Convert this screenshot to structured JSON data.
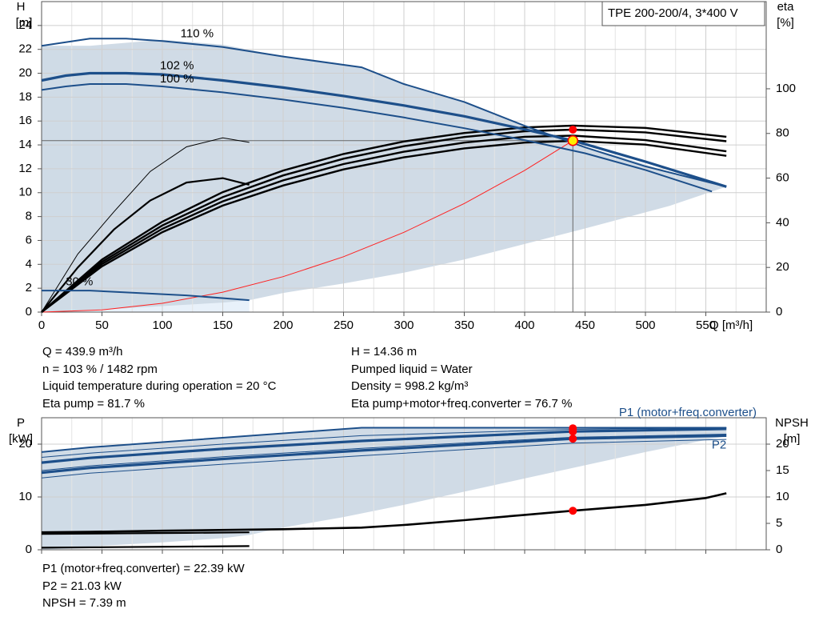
{
  "chart_data": [
    {
      "type": "line",
      "title": "TPE 200-200/4, 3*400 V",
      "xlabel": "Q [m³/h]",
      "ylabel_left": "H",
      "ylabel_left_unit": "[m]",
      "ylabel_right": "eta",
      "ylabel_right_unit": "[%]",
      "xlim": [
        0,
        600
      ],
      "xticks": [
        0,
        50,
        100,
        150,
        200,
        250,
        300,
        350,
        400,
        450,
        500,
        550
      ],
      "ylim_left": [
        0,
        26
      ],
      "yticks_left": [
        0,
        2,
        4,
        6,
        8,
        10,
        12,
        14,
        16,
        18,
        20,
        22,
        24
      ],
      "ylim_right": [
        0,
        100
      ],
      "yticks_right": [
        0,
        20,
        40,
        60,
        80,
        100
      ],
      "grid": true,
      "operating_point": {
        "x": 439.9,
        "y": 14.36
      },
      "speed_labels": [
        {
          "text": "110 %",
          "x": 115,
          "y": 23.3
        },
        {
          "text": "102 %",
          "x": 98,
          "y": 20.6
        },
        {
          "text": "100 %",
          "x": 98,
          "y": 19.5
        },
        {
          "text": "30 %",
          "x": 20,
          "y": 2.5
        }
      ],
      "envelope": {
        "x": [
          0,
          40,
          100,
          150,
          200,
          265,
          300,
          350,
          400,
          440,
          480,
          520,
          567,
          567,
          520,
          450,
          400,
          350,
          300,
          250,
          200,
          172,
          172,
          150,
          100,
          50,
          0
        ],
        "y": [
          22.3,
          22.3,
          22.8,
          22.4,
          21.4,
          20.5,
          19.1,
          17.6,
          15.6,
          14.1,
          13.0,
          11.7,
          10.5,
          10.5,
          8.9,
          7.0,
          5.7,
          4.4,
          3.3,
          2.4,
          1.6,
          1.0,
          1.0,
          0.8,
          0.5,
          0.2,
          0
        ]
      },
      "head_curves": [
        {
          "name": "110 %",
          "x": [
            0,
            20,
            40,
            70,
            100,
            150,
            200,
            265,
            300,
            350,
            400,
            450,
            500,
            567
          ],
          "y": [
            22.3,
            22.6,
            22.9,
            22.9,
            22.7,
            22.2,
            21.4,
            20.5,
            19.1,
            17.6,
            15.6,
            13.8,
            12.2,
            10.5
          ]
        },
        {
          "name": "102 %",
          "x": [
            0,
            20,
            40,
            70,
            100,
            150,
            200,
            250,
            300,
            350,
            400,
            440,
            500,
            567
          ],
          "y": [
            19.4,
            19.8,
            20.0,
            20.0,
            19.9,
            19.4,
            18.8,
            18.1,
            17.3,
            16.4,
            15.3,
            14.36,
            12.6,
            10.5
          ]
        },
        {
          "name": "100 %",
          "x": [
            0,
            20,
            40,
            70,
            100,
            150,
            200,
            250,
            300,
            350,
            400,
            450,
            500,
            555
          ],
          "y": [
            18.6,
            18.9,
            19.1,
            19.1,
            18.9,
            18.4,
            17.8,
            17.1,
            16.3,
            15.4,
            14.4,
            13.3,
            11.9,
            10.1
          ]
        },
        {
          "name": "30 %",
          "x": [
            0,
            40,
            80,
            120,
            172
          ],
          "y": [
            1.8,
            1.8,
            1.6,
            1.4,
            1.0
          ]
        }
      ],
      "system_curve": {
        "x": [
          0,
          50,
          100,
          150,
          200,
          250,
          300,
          350,
          400,
          439.9
        ],
        "y": [
          0,
          0.19,
          0.74,
          1.67,
          2.97,
          4.64,
          6.68,
          9.09,
          11.87,
          14.36
        ]
      },
      "efficiency_curves": [
        {
          "x": [
            0,
            50,
            100,
            150,
            200,
            250,
            300,
            350,
            400,
            440,
            500,
            567
          ],
          "y": [
            0,
            20.5,
            35.8,
            47.7,
            56.7,
            63.9,
            69.3,
            73.3,
            75.9,
            76.7,
            75.0,
            70.0
          ]
        },
        {
          "x": [
            0,
            50,
            100,
            150,
            200,
            250,
            300,
            350,
            400,
            440,
            500,
            567
          ],
          "y": [
            0,
            21.5,
            37.3,
            49.6,
            59.0,
            66.3,
            71.8,
            75.9,
            78.5,
            79.0,
            77.0,
            72.0
          ]
        },
        {
          "x": [
            0,
            50,
            100,
            150,
            200,
            250,
            300,
            350,
            400,
            440,
            500,
            567
          ],
          "y": [
            0,
            22.5,
            38.8,
            51.5,
            61.2,
            68.7,
            74.3,
            78.4,
            81.0,
            81.7,
            80.5,
            76.5
          ]
        },
        {
          "x": [
            0,
            50,
            100,
            150,
            200,
            250,
            300,
            350,
            400,
            440,
            500,
            567
          ],
          "y": [
            0,
            23.5,
            40.5,
            53.7,
            63.4,
            70.8,
            76.4,
            80.2,
            82.7,
            83.5,
            82.5,
            78.5
          ]
        },
        {
          "x": [
            0,
            30,
            60,
            90,
            120,
            150,
            172
          ],
          "y": [
            0,
            20,
            37,
            50,
            58,
            60,
            57
          ]
        },
        {
          "x": [
            0,
            30,
            60,
            90,
            120,
            150,
            172
          ],
          "y": [
            0,
            26,
            45,
            63,
            74,
            78,
            76
          ]
        }
      ],
      "efficiency_points": [
        {
          "x": 439.9,
          "y": 81.7
        },
        {
          "x": 439.9,
          "y": 76.7
        }
      ]
    },
    {
      "type": "line",
      "xlabel": "",
      "ylabel_left": "P",
      "ylabel_left_unit": "[kW]",
      "ylabel_right": "NPSH",
      "ylabel_right_unit": "[m]",
      "xlim": [
        0,
        600
      ],
      "ylim_left": [
        0,
        25
      ],
      "yticks_left": [
        0,
        10,
        20
      ],
      "ylim_right": [
        0,
        25
      ],
      "yticks_right": [
        0,
        5,
        10,
        15,
        20
      ],
      "grid": true,
      "series_labels": [
        {
          "text": "P1 (motor+freq.converter)",
          "x": 600,
          "y": 25.9,
          "color": "#1d4f8a"
        },
        {
          "text": "P2",
          "x": 575,
          "y": 19.8,
          "color": "#1d4f8a"
        }
      ],
      "envelope": {
        "x": [
          0,
          40,
          265,
          440,
          567,
          567,
          550,
          500,
          450,
          400,
          350,
          300,
          250,
          200,
          172,
          150,
          100,
          60,
          30,
          0
        ],
        "y": [
          18.5,
          19.4,
          23.1,
          23.1,
          23.1,
          21.5,
          20.8,
          18.5,
          16.0,
          13.5,
          11.0,
          8.5,
          6.2,
          4.2,
          2.8,
          2.2,
          1.4,
          0.9,
          0.5,
          0
        ]
      },
      "power_curves": [
        {
          "x": [
            0,
            40,
            265,
            440,
            567
          ],
          "y": [
            18.5,
            19.4,
            23.1,
            23.1,
            23.1
          ]
        },
        {
          "x": [
            0,
            40,
            150,
            265,
            440,
            567
          ],
          "y": [
            17.5,
            18.3,
            20.0,
            21.6,
            22.8,
            23.1
          ]
        },
        {
          "x": [
            0,
            40,
            150,
            265,
            440,
            567
          ],
          "y": [
            16.5,
            17.4,
            19.1,
            20.6,
            22.39,
            22.9
          ]
        },
        {
          "x": [
            0,
            40,
            150,
            265,
            440,
            567
          ],
          "y": [
            15.0,
            15.9,
            17.6,
            19.2,
            21.3,
            21.9
          ]
        },
        {
          "x": [
            0,
            40,
            150,
            265,
            440,
            567
          ],
          "y": [
            14.6,
            15.5,
            17.2,
            18.8,
            21.03,
            21.6
          ]
        },
        {
          "x": [
            0,
            40,
            150,
            265,
            440,
            567
          ],
          "y": [
            13.6,
            14.5,
            16.2,
            17.8,
            20.2,
            20.9
          ]
        },
        {
          "x": [
            0,
            60,
            120,
            172
          ],
          "y": [
            3.0,
            3.1,
            3.2,
            3.3
          ]
        },
        {
          "x": [
            0,
            60,
            120,
            172
          ],
          "y": [
            0.4,
            0.5,
            0.6,
            0.7
          ]
        }
      ],
      "npsh_curve": {
        "x": [
          0,
          40,
          100,
          200,
          265,
          300,
          350,
          400,
          439.9,
          500,
          550,
          567
        ],
        "y": [
          3.3,
          3.4,
          3.6,
          3.9,
          4.2,
          4.7,
          5.6,
          6.6,
          7.39,
          8.5,
          9.8,
          10.7
        ]
      },
      "points": [
        {
          "x": 439.9,
          "y": 23.0
        },
        {
          "x": 439.9,
          "y": 22.39
        },
        {
          "x": 439.9,
          "y": 21.03
        },
        {
          "x": 439.9,
          "y": 7.39
        }
      ]
    }
  ],
  "results": {
    "left": [
      "Q = 439.9 m³/h",
      "n = 103 % / 1482 rpm",
      "Liquid temperature during operation = 20 °C",
      "Eta pump = 81.7 %"
    ],
    "right": [
      "H = 14.36 m",
      "Pumped liquid = Water",
      "Density = 998.2 kg/m³",
      "Eta pump+motor+freq.converter = 76.7 %"
    ],
    "bottom": [
      "P1 (motor+freq.converter) = 22.39 kW",
      "P2 = 21.03 kW",
      "NPSH = 7.39 m"
    ]
  },
  "colors": {
    "curve_blue": "#1d4f8a",
    "envelope": "#cdd9e5",
    "envelope_low": "#e8f1fa",
    "grid": "#cfcfcf",
    "point_red": "#ff0000",
    "point_yellow": "#ffee00",
    "system_curve": "#ff2020"
  }
}
